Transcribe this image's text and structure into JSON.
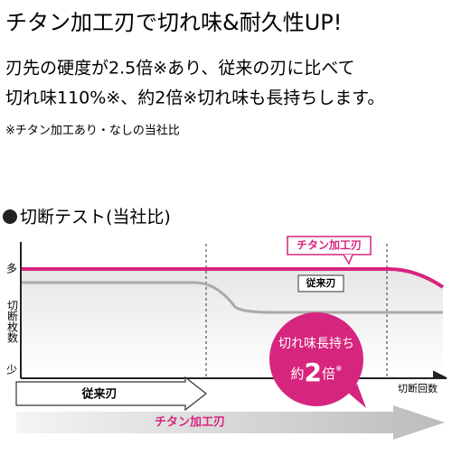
{
  "header": {
    "title": "チタン加工刃で切れ味&耐久性UP!"
  },
  "body": {
    "lines": [
      "刃先の硬度が2.5倍※あり、従来の刃に比べて",
      "切れ味110%※、約2倍※切れ味も長持ちします。"
    ],
    "note": "※チタン加工あり・なしの当社比"
  },
  "section": {
    "title": "切断テスト(当社比)"
  },
  "illustration": {
    "y_top": "多",
    "y_label": "切断枚数",
    "y_bottom": "少",
    "x_label": "切断回数",
    "legend": {
      "titanium": "チタン加工刃",
      "conventional": "従来刃"
    },
    "bubble": {
      "line1": "切れ味長持ち",
      "prefix": "約",
      "number": "2",
      "suffix": "倍",
      "mark": "※"
    },
    "arrows": {
      "conventional": "従来刃",
      "titanium": "チタン加工刃"
    }
  }
}
